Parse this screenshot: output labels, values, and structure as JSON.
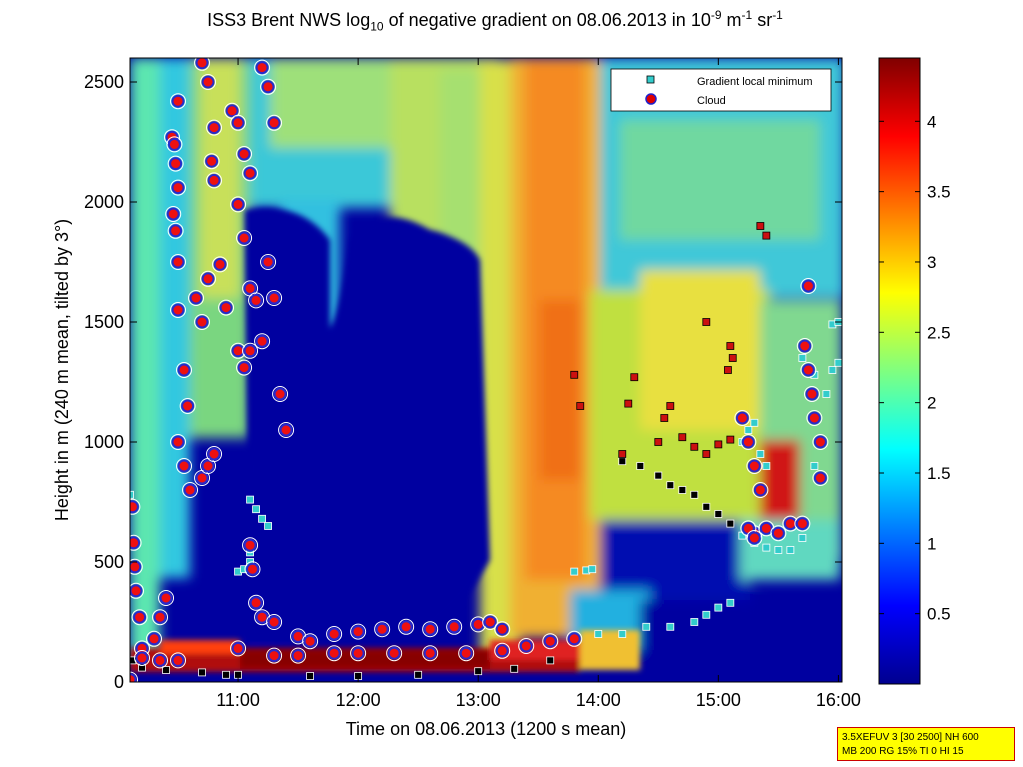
{
  "title": {
    "prefix": "ISS3 Brent NWS log",
    "sub": "10",
    "mid": " of negative gradient on 08.06.2013 in 10",
    "sup1": "-9",
    "mid2": " m",
    "sup2": "-1",
    "mid3": " sr",
    "sup3": "-1"
  },
  "info_box": {
    "line1": "3.5XEFUV 3 [30 2500] NH 600",
    "line2": "MB 200 RG 15% TI 0 HI 15"
  },
  "chart_data": {
    "type": "heatmap",
    "xlabel": "Time on 08.06.2013 (1200 s mean)",
    "ylabel": "Height in m (240 m mean, tilted by 3°)",
    "x_ticks": [
      "11:00",
      "12:00",
      "13:00",
      "14:00",
      "15:00",
      "16:00"
    ],
    "x_tick_hours": [
      11,
      12,
      13,
      14,
      15,
      16
    ],
    "xlim_hours": [
      10.1,
      16.03
    ],
    "y_ticks": [
      0,
      500,
      1000,
      1500,
      2000,
      2500
    ],
    "ylim": [
      0,
      2600
    ],
    "colorbar": {
      "ticks": [
        0.5,
        1,
        1.5,
        2,
        2.5,
        3,
        3.5,
        4
      ],
      "range": [
        0,
        4.45
      ],
      "colormap": "jet"
    },
    "legend": {
      "placement": "top-right",
      "entries": [
        {
          "label": "Gradient local minimum",
          "color": "#33cccc",
          "marker": "square"
        },
        {
          "label": "Cloud",
          "color": "#dd0000",
          "marker": "circle"
        }
      ]
    },
    "series": [
      {
        "name": "Gradient local minimum",
        "points": [
          [
            10.1,
            780
          ],
          [
            10.12,
            90
          ],
          [
            10.2,
            60
          ],
          [
            10.4,
            50
          ],
          [
            10.7,
            40
          ],
          [
            10.9,
            30
          ],
          [
            11.0,
            30
          ],
          [
            11.1,
            760
          ],
          [
            11.15,
            720
          ],
          [
            11.2,
            680
          ],
          [
            11.25,
            650
          ],
          [
            11.0,
            460
          ],
          [
            11.05,
            470
          ],
          [
            11.1,
            500
          ],
          [
            11.1,
            540
          ],
          [
            11.6,
            25
          ],
          [
            12.0,
            25
          ],
          [
            12.5,
            30
          ],
          [
            13.0,
            45
          ],
          [
            13.3,
            55
          ],
          [
            13.6,
            90
          ],
          [
            13.8,
            460
          ],
          [
            13.9,
            465
          ],
          [
            13.95,
            470
          ],
          [
            14.0,
            200
          ],
          [
            14.2,
            200
          ],
          [
            14.4,
            230
          ],
          [
            14.6,
            230
          ],
          [
            14.8,
            250
          ],
          [
            14.9,
            280
          ],
          [
            15.0,
            310
          ],
          [
            15.1,
            330
          ],
          [
            14.2,
            920
          ],
          [
            14.35,
            900
          ],
          [
            14.5,
            860
          ],
          [
            14.6,
            820
          ],
          [
            14.7,
            800
          ],
          [
            14.8,
            780
          ],
          [
            14.9,
            730
          ],
          [
            15.0,
            700
          ],
          [
            15.1,
            660
          ],
          [
            15.2,
            610
          ],
          [
            15.3,
            580
          ],
          [
            15.4,
            560
          ],
          [
            15.5,
            550
          ],
          [
            15.6,
            550
          ],
          [
            15.7,
            600
          ],
          [
            15.8,
            900
          ],
          [
            15.85,
            1000
          ],
          [
            15.9,
            1200
          ],
          [
            15.95,
            1300
          ],
          [
            16.0,
            1330
          ],
          [
            15.8,
            1280
          ],
          [
            15.7,
            1350
          ],
          [
            15.2,
            1000
          ],
          [
            15.25,
            1050
          ],
          [
            15.3,
            1080
          ],
          [
            15.35,
            950
          ],
          [
            15.4,
            900
          ],
          [
            15.95,
            1490
          ],
          [
            16.0,
            1500
          ]
        ]
      },
      {
        "name": "Cloud",
        "points": [
          [
            10.12,
            730
          ],
          [
            10.13,
            580
          ],
          [
            10.14,
            480
          ],
          [
            10.15,
            380
          ],
          [
            10.18,
            270
          ],
          [
            10.2,
            140
          ],
          [
            10.3,
            180
          ],
          [
            10.35,
            270
          ],
          [
            10.4,
            350
          ],
          [
            10.45,
            2270
          ],
          [
            10.47,
            2240
          ],
          [
            10.5,
            2420
          ],
          [
            10.48,
            2160
          ],
          [
            10.5,
            2060
          ],
          [
            10.46,
            1950
          ],
          [
            10.48,
            1880
          ],
          [
            10.5,
            1750
          ],
          [
            10.5,
            1550
          ],
          [
            10.55,
            1300
          ],
          [
            10.58,
            1150
          ],
          [
            10.5,
            1000
          ],
          [
            10.55,
            900
          ],
          [
            10.6,
            800
          ],
          [
            10.7,
            850
          ],
          [
            10.75,
            900
          ],
          [
            10.8,
            950
          ],
          [
            10.65,
            1600
          ],
          [
            10.7,
            1500
          ],
          [
            10.75,
            1680
          ],
          [
            10.7,
            2580
          ],
          [
            10.75,
            2500
          ],
          [
            10.8,
            2310
          ],
          [
            10.78,
            2170
          ],
          [
            10.8,
            2090
          ],
          [
            10.85,
            1740
          ],
          [
            10.9,
            1560
          ],
          [
            10.95,
            2380
          ],
          [
            11.0,
            2330
          ],
          [
            11.05,
            2200
          ],
          [
            11.1,
            2120
          ],
          [
            11.0,
            1990
          ],
          [
            11.05,
            1850
          ],
          [
            11.1,
            1640
          ],
          [
            11.15,
            1590
          ],
          [
            11.2,
            1420
          ],
          [
            11.0,
            1380
          ],
          [
            11.05,
            1310
          ],
          [
            11.1,
            570
          ],
          [
            11.12,
            470
          ],
          [
            11.15,
            330
          ],
          [
            11.2,
            270
          ],
          [
            11.3,
            250
          ],
          [
            11.1,
            1380
          ],
          [
            11.2,
            2560
          ],
          [
            11.25,
            2480
          ],
          [
            11.3,
            2330
          ],
          [
            11.25,
            1750
          ],
          [
            11.3,
            1600
          ],
          [
            11.35,
            1200
          ],
          [
            11.4,
            1050
          ],
          [
            11.5,
            190
          ],
          [
            11.6,
            170
          ],
          [
            11.8,
            200
          ],
          [
            12.0,
            210
          ],
          [
            12.2,
            220
          ],
          [
            12.4,
            230
          ],
          [
            12.6,
            220
          ],
          [
            12.8,
            230
          ],
          [
            13.0,
            240
          ],
          [
            13.1,
            250
          ],
          [
            13.2,
            220
          ],
          [
            11.3,
            110
          ],
          [
            11.5,
            110
          ],
          [
            11.8,
            120
          ],
          [
            12.0,
            120
          ],
          [
            12.3,
            120
          ],
          [
            12.6,
            120
          ],
          [
            12.9,
            120
          ],
          [
            13.2,
            130
          ],
          [
            13.4,
            150
          ],
          [
            13.6,
            170
          ],
          [
            13.8,
            180
          ],
          [
            10.1,
            10
          ],
          [
            10.2,
            100
          ],
          [
            10.35,
            90
          ],
          [
            10.5,
            90
          ],
          [
            11.0,
            140
          ],
          [
            15.3,
            620
          ],
          [
            15.4,
            640
          ],
          [
            15.5,
            620
          ],
          [
            15.6,
            660
          ],
          [
            15.7,
            660
          ],
          [
            15.75,
            1650
          ],
          [
            15.72,
            1400
          ],
          [
            15.75,
            1300
          ],
          [
            15.78,
            1200
          ],
          [
            15.8,
            1100
          ],
          [
            15.85,
            1000
          ],
          [
            15.85,
            850
          ],
          [
            15.2,
            1100
          ],
          [
            15.25,
            1000
          ],
          [
            15.3,
            900
          ],
          [
            15.35,
            800
          ],
          [
            15.25,
            640
          ],
          [
            15.3,
            600
          ]
        ]
      }
    ],
    "cloud_like_markers_upper": [
      [
        15.35,
        1900
      ],
      [
        15.4,
        1860
      ],
      [
        14.9,
        1500
      ],
      [
        15.1,
        1400
      ],
      [
        15.12,
        1350
      ],
      [
        15.08,
        1300
      ],
      [
        14.5,
        1000
      ],
      [
        14.55,
        1100
      ],
      [
        14.6,
        1150
      ],
      [
        14.7,
        1020
      ],
      [
        14.8,
        980
      ],
      [
        14.9,
        950
      ],
      [
        15.0,
        990
      ],
      [
        15.1,
        1010
      ],
      [
        14.2,
        950
      ],
      [
        13.8,
        1280
      ],
      [
        13.85,
        1150
      ],
      [
        14.3,
        1270
      ],
      [
        14.25,
        1160
      ]
    ]
  }
}
